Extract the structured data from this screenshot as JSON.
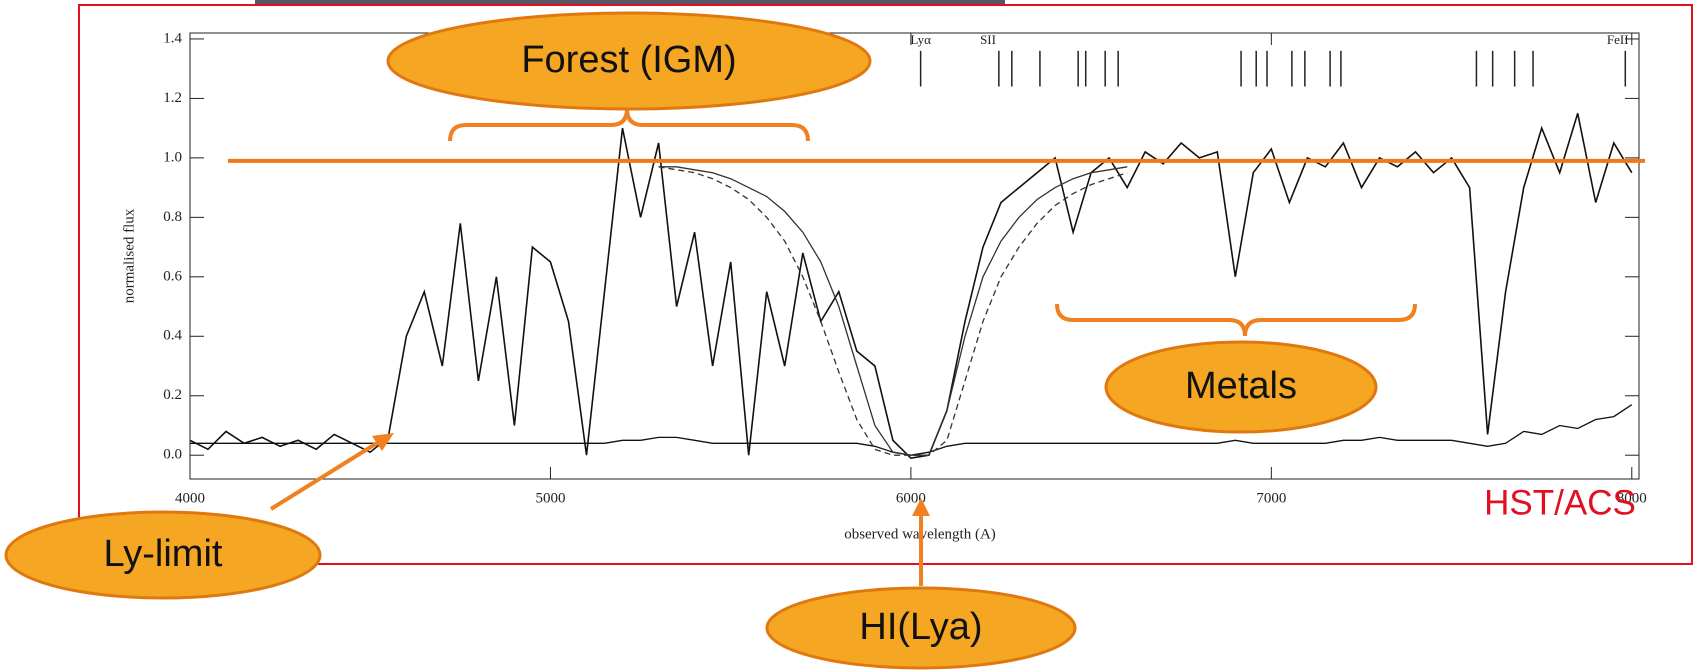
{
  "chart_data": {
    "type": "line",
    "xlabel": "observed wavelength (A)",
    "ylabel": "normalised flux",
    "xlim": [
      4000,
      8020
    ],
    "ylim": [
      -0.08,
      1.42
    ],
    "xticks": [
      4000,
      5000,
      6000,
      7000,
      8000
    ],
    "yticks": [
      {
        "value": 0,
        "label": "0.0"
      },
      0.2,
      0.4,
      0.6,
      0.8,
      {
        "value": 1,
        "label": "1.0"
      },
      1.2,
      1.4
    ],
    "x": [
      4000,
      4050,
      4100,
      4150,
      4200,
      4250,
      4300,
      4350,
      4400,
      4450,
      4500,
      4550,
      4600,
      4650,
      4700,
      4750,
      4800,
      4850,
      4900,
      4950,
      5000,
      5050,
      5100,
      5150,
      5200,
      5250,
      5300,
      5350,
      5400,
      5450,
      5500,
      5550,
      5600,
      5650,
      5700,
      5750,
      5800,
      5850,
      5900,
      5950,
      6000,
      6050,
      6100,
      6150,
      6200,
      6250,
      6300,
      6350,
      6400,
      6450,
      6500,
      6550,
      6600,
      6650,
      6700,
      6750,
      6800,
      6850,
      6900,
      6950,
      7000,
      7050,
      7100,
      7150,
      7200,
      7250,
      7300,
      7350,
      7400,
      7450,
      7500,
      7550,
      7600,
      7650,
      7700,
      7750,
      7800,
      7850,
      7900,
      7950,
      8000
    ],
    "series": [
      {
        "color": "#111111",
        "values": [
          0.05,
          0.02,
          0.08,
          0.04,
          0.06,
          0.03,
          0.05,
          0.02,
          0.07,
          0.04,
          0.01,
          0.06,
          0.4,
          0.55,
          0.3,
          0.78,
          0.25,
          0.6,
          0.1,
          0.7,
          0.65,
          0.45,
          0.0,
          0.55,
          1.1,
          0.8,
          1.05,
          0.5,
          0.75,
          0.3,
          0.65,
          0.0,
          0.55,
          0.3,
          0.68,
          0.45,
          0.55,
          0.35,
          0.3,
          0.05,
          -0.01,
          0.0,
          0.15,
          0.45,
          0.7,
          0.85,
          0.9,
          0.95,
          1.0,
          0.75,
          0.95,
          1.0,
          0.9,
          1.02,
          0.98,
          1.05,
          1.0,
          1.02,
          0.6,
          0.95,
          1.03,
          0.85,
          1.0,
          0.97,
          1.05,
          0.9,
          1.0,
          0.97,
          1.02,
          0.95,
          1.0,
          0.9,
          0.07,
          0.55,
          0.9,
          1.1,
          0.95,
          1.15,
          0.85,
          1.05,
          0.95
        ]
      },
      {
        "color": "#111111",
        "values": [
          0.04,
          0.04,
          0.04,
          0.04,
          0.04,
          0.04,
          0.04,
          0.04,
          0.04,
          0.04,
          0.04,
          0.04,
          0.04,
          0.04,
          0.04,
          0.04,
          0.04,
          0.04,
          0.04,
          0.04,
          0.04,
          0.04,
          0.04,
          0.04,
          0.05,
          0.05,
          0.06,
          0.06,
          0.05,
          0.04,
          0.04,
          0.04,
          0.04,
          0.04,
          0.04,
          0.04,
          0.04,
          0.04,
          0.03,
          0.01,
          0.0,
          0.01,
          0.03,
          0.04,
          0.04,
          0.04,
          0.04,
          0.04,
          0.04,
          0.04,
          0.04,
          0.04,
          0.04,
          0.04,
          0.04,
          0.04,
          0.04,
          0.04,
          0.05,
          0.04,
          0.04,
          0.04,
          0.04,
          0.04,
          0.05,
          0.05,
          0.06,
          0.05,
          0.05,
          0.05,
          0.05,
          0.04,
          0.03,
          0.04,
          0.08,
          0.07,
          0.1,
          0.09,
          0.12,
          0.13,
          0.17
        ]
      },
      {
        "color": "#333333",
        "dashed": false,
        "x": [
          5300,
          5350,
          5400,
          5450,
          5500,
          5550,
          5600,
          5650,
          5700,
          5750,
          5800,
          5850,
          5900,
          5950,
          6000,
          6050,
          6100,
          6150,
          6200,
          6250,
          6300,
          6350,
          6400,
          6450,
          6500,
          6550,
          6600
        ],
        "values": [
          0.97,
          0.97,
          0.96,
          0.95,
          0.93,
          0.9,
          0.87,
          0.82,
          0.75,
          0.65,
          0.5,
          0.3,
          0.1,
          0.01,
          0.0,
          0.0,
          0.15,
          0.4,
          0.6,
          0.72,
          0.8,
          0.86,
          0.9,
          0.93,
          0.95,
          0.96,
          0.97
        ]
      },
      {
        "color": "#333333",
        "dashed": true,
        "x": [
          5300,
          5350,
          5400,
          5450,
          5500,
          5550,
          5600,
          5650,
          5700,
          5750,
          5800,
          5850,
          5900,
          5950,
          6000,
          6050,
          6100,
          6150,
          6200,
          6250,
          6300,
          6350,
          6400,
          6450,
          6500,
          6550,
          6600
        ],
        "values": [
          0.97,
          0.96,
          0.95,
          0.93,
          0.9,
          0.86,
          0.8,
          0.72,
          0.6,
          0.45,
          0.28,
          0.12,
          0.02,
          0.0,
          0.0,
          0.0,
          0.05,
          0.25,
          0.45,
          0.6,
          0.7,
          0.78,
          0.84,
          0.88,
          0.91,
          0.93,
          0.95
        ]
      }
    ],
    "reference_line": 0.99,
    "line_markers": [
      6027,
      6244,
      6280,
      6358,
      6464,
      6485,
      6539,
      6575,
      6916,
      6958,
      6988,
      7057,
      7093,
      7163,
      7193,
      7569,
      7614,
      7675,
      7726,
      7982
    ],
    "line_labels": [
      {
        "label": "Lyα",
        "value": 6027
      },
      {
        "label": "SII",
        "value": 6214
      },
      {
        "label": "FeII",
        "value": 7961
      }
    ],
    "annotations": [
      "Forest (IGM)",
      "Ly-limit",
      "HI(Lya)",
      "Metals"
    ],
    "instrument": "HST/ACS"
  }
}
